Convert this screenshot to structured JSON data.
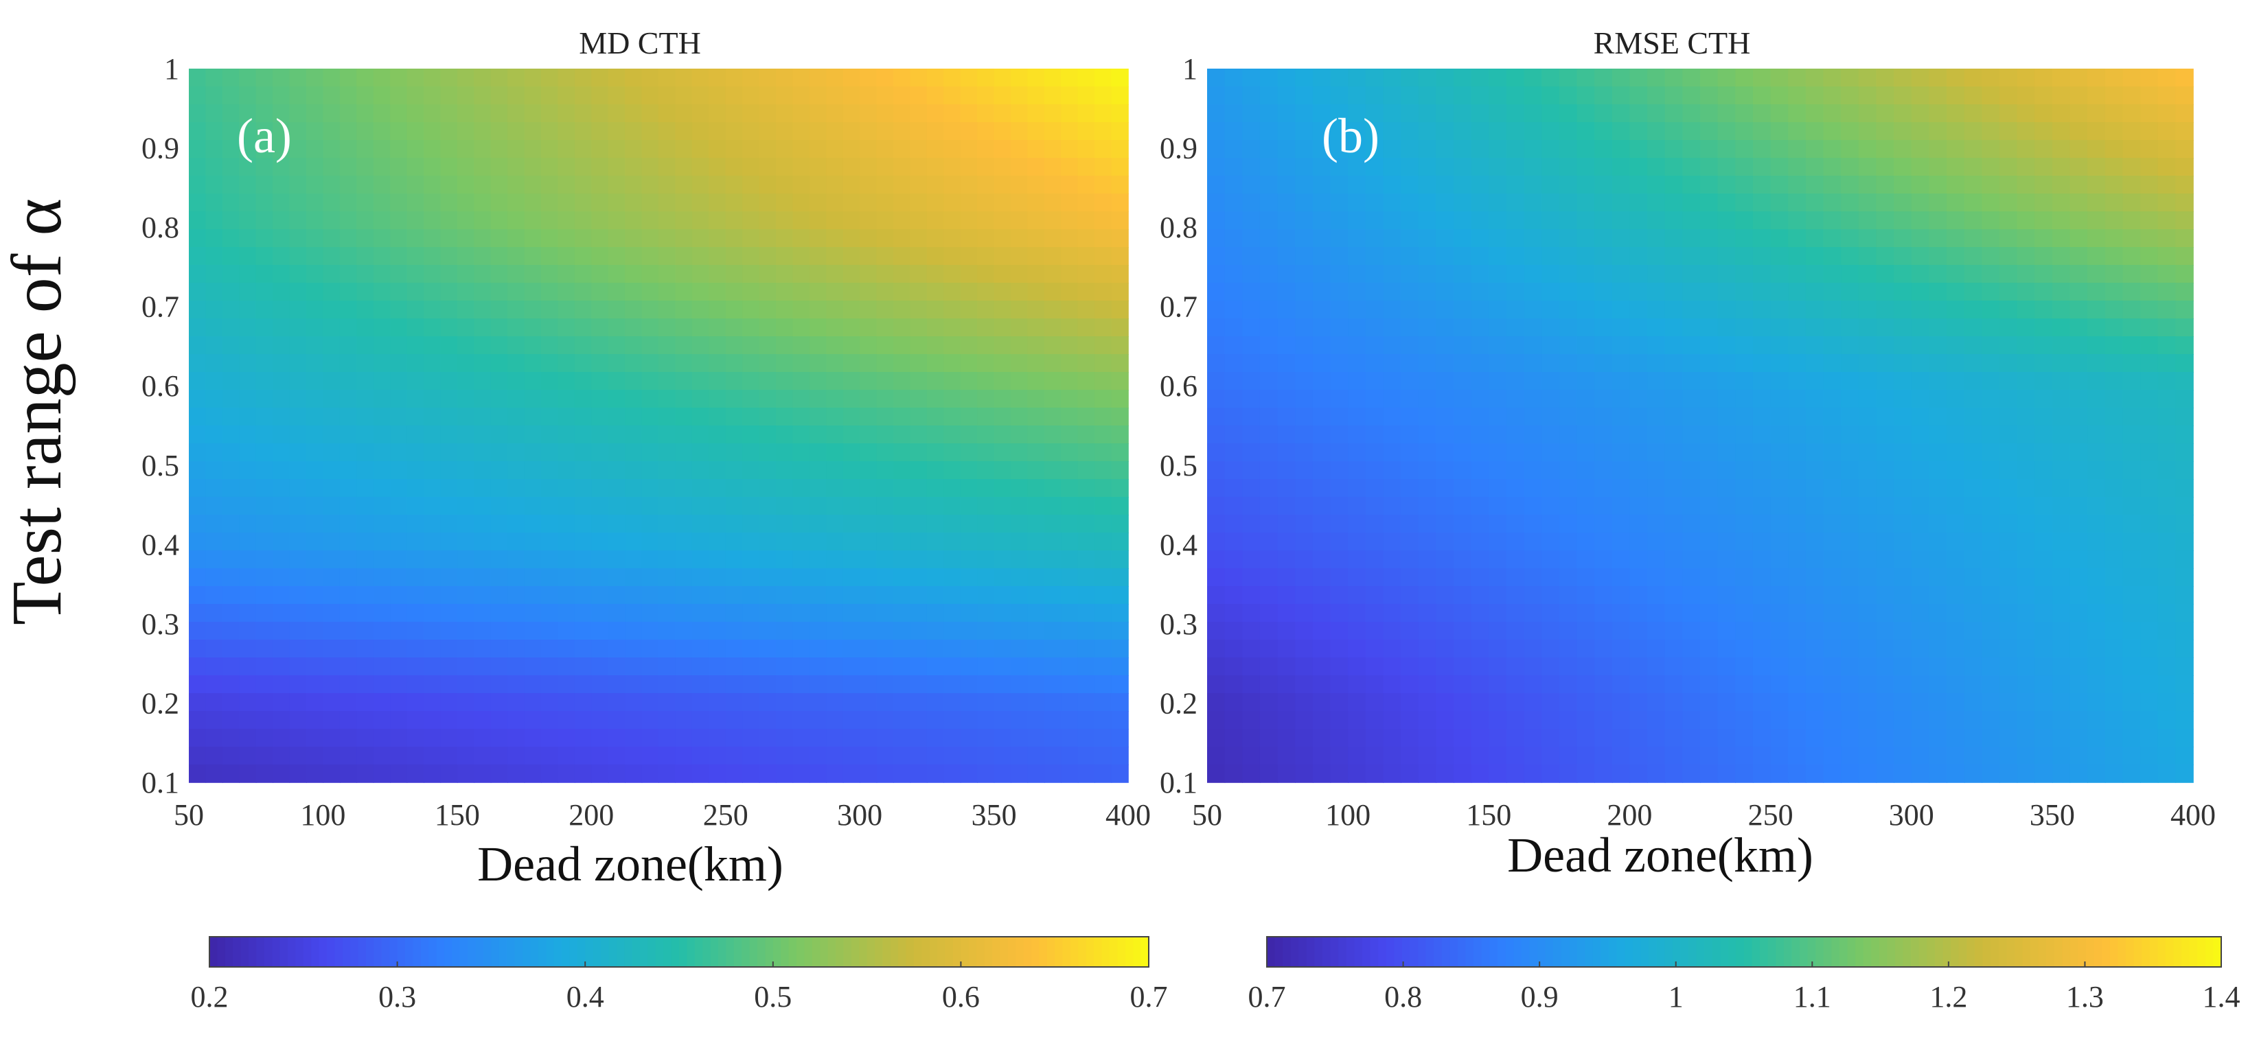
{
  "chart_data": [
    {
      "type": "heatmap",
      "title": "MD CTH",
      "panel_label": "(a)",
      "xlabel": "Dead zone(km)",
      "ylabel": "Test range of α",
      "xlim": [
        50,
        400
      ],
      "ylim": [
        0.1,
        1
      ],
      "xticks": [
        "50",
        "100",
        "150",
        "200",
        "250",
        "300",
        "350",
        "400"
      ],
      "yticks": [
        "0.1",
        "0.2",
        "0.3",
        "0.4",
        "0.5",
        "0.6",
        "0.7",
        "0.8",
        "0.9",
        "1"
      ],
      "colormap": "parula",
      "clim": [
        0.2,
        0.7
      ],
      "colorbar_ticks": [
        "0.2",
        "0.3",
        "0.4",
        "0.5",
        "0.6",
        "0.7"
      ],
      "x_samples": [
        50,
        400
      ],
      "y_samples": [
        0.1,
        0.2,
        0.4,
        0.6,
        0.8,
        1.0
      ],
      "z_grid": [
        [
          0.22,
          0.29
        ],
        [
          0.25,
          0.31
        ],
        [
          0.35,
          0.43
        ],
        [
          0.4,
          0.52
        ],
        [
          0.45,
          0.63
        ],
        [
          0.47,
          0.7
        ]
      ]
    },
    {
      "type": "heatmap",
      "title": "RMSE CTH",
      "panel_label": "(b)",
      "xlabel": "Dead zone(km)",
      "ylabel": "",
      "xlim": [
        50,
        400
      ],
      "ylim": [
        0.1,
        1
      ],
      "xticks": [
        "50",
        "100",
        "150",
        "200",
        "250",
        "300",
        "350",
        "400"
      ],
      "yticks": [
        "0.1",
        "0.2",
        "0.3",
        "0.4",
        "0.5",
        "0.6",
        "0.7",
        "0.8",
        "0.9",
        "1"
      ],
      "colormap": "parula",
      "clim": [
        0.7,
        1.4
      ],
      "colorbar_ticks": [
        "0.7",
        "0.8",
        "0.9",
        "1",
        "1.1",
        "1.2",
        "1.3",
        "1.4"
      ],
      "x_samples": [
        50,
        400
      ],
      "y_samples": [
        0.1,
        0.2,
        0.4,
        0.6,
        0.8,
        1.0
      ],
      "z_grid": [
        [
          0.72,
          0.96
        ],
        [
          0.73,
          0.97
        ],
        [
          0.8,
          0.99
        ],
        [
          0.85,
          1.02
        ],
        [
          0.89,
          1.18
        ],
        [
          0.93,
          1.32
        ]
      ]
    }
  ]
}
